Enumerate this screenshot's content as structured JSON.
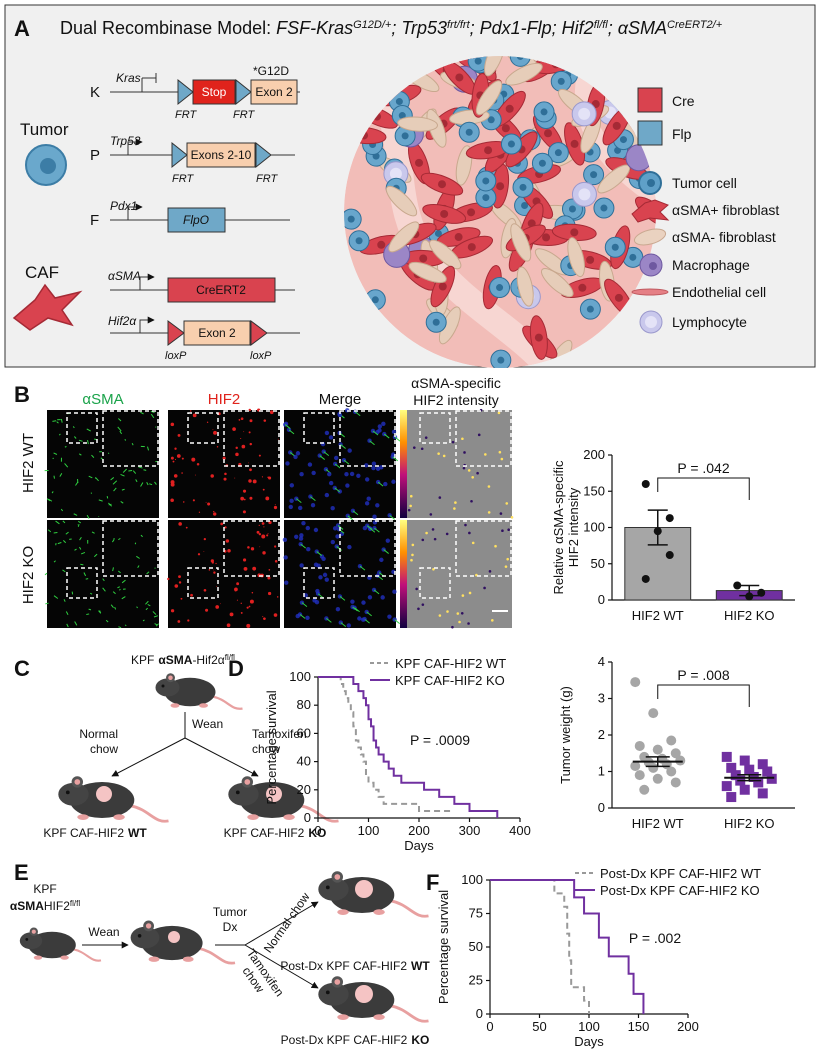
{
  "panel_a": {
    "letter": "A",
    "title_prefix": "Dual Recombinase Model:",
    "genotype": [
      {
        "text": "FSF-Kras",
        "sup": "G12D/+"
      },
      {
        "text": "; Trp53",
        "sup": "frt/frt"
      },
      {
        "text": "; Pdx1-Flp; Hif2",
        "sup": "fl/fl"
      },
      {
        "text": "; αSMA",
        "sup": "CreERT2/+"
      }
    ],
    "tumor": "Tumor",
    "caf": "CAF",
    "constructs": [
      {
        "letter": "K",
        "gene": "Kras",
        "boxes": [
          "Stop",
          "Exon 2"
        ],
        "mutation": "*G12D",
        "sites": [
          "FRT",
          "FRT"
        ]
      },
      {
        "letter": "P",
        "gene": "Trp53",
        "boxes": [
          "Exons 2-10"
        ],
        "sites": [
          "FRT",
          "FRT"
        ]
      },
      {
        "letter": "F",
        "gene": "Pdx1",
        "boxes": [
          "FlpO"
        ]
      },
      {
        "gene": "αSMA",
        "boxes": [
          "CreERT2"
        ]
      },
      {
        "gene": "Hif2α",
        "boxes": [
          "Exon 2"
        ],
        "sites": [
          "loxP",
          "loxP"
        ]
      }
    ],
    "legend": [
      "Cre",
      "Flp",
      "Tumor cell",
      "αSMA+ fibroblast",
      "αSMA- fibroblast",
      "Macrophage",
      "Endothelial cell",
      "Lymphocyte"
    ]
  },
  "panel_b": {
    "letter": "B",
    "columns": [
      "αSMA",
      "HIF2",
      "Merge"
    ],
    "column_4": [
      "αSMA-specific",
      "HIF2 intensity"
    ],
    "rows": [
      "HIF2 WT",
      "HIF2 KO"
    ]
  },
  "panel_c": {
    "letter": "C",
    "parent": {
      "pre": "KPF",
      "bold": "αSMA",
      "mid": "-Hif2α",
      "sup": "fl/fl"
    },
    "wean": "Wean",
    "left_arrow": [
      "Normal",
      "chow"
    ],
    "right_arrow": [
      "Tamoxifen",
      "chow"
    ],
    "groups": [
      {
        "text": "KPF CAF-HIF2",
        "bold": "WT"
      },
      {
        "text": "KPF CAF-HIF2",
        "bold": "KO"
      }
    ]
  },
  "panel_d": {
    "letter": "D"
  },
  "panel_e": {
    "letter": "E",
    "parent": {
      "line1": "KPF",
      "bold": "αSMA",
      "rest": "HIF2",
      "sup": "fl/fl"
    },
    "wean": "Wean",
    "dx": [
      "Tumor",
      "Dx"
    ],
    "upper_arrow": "Normal chow",
    "lower_arrow": [
      "Tamoxifen",
      "chow"
    ],
    "groups": [
      {
        "text": "Post-Dx KPF CAF-HIF2",
        "bold": "WT"
      },
      {
        "text": "Post-Dx KPF CAF-HIF2",
        "bold": "KO"
      }
    ]
  },
  "panel_f": {
    "letter": "F"
  },
  "chart_data": [
    {
      "type": "bar",
      "ylabel": [
        "Relative αSMA-specific",
        "HIF2 intensity"
      ],
      "categories": [
        "HIF2 WT",
        "HIF2 KO"
      ],
      "values": [
        100,
        13
      ],
      "errors": [
        24,
        7
      ],
      "points": [
        [
          160,
          113,
          95,
          62,
          29
        ],
        [
          20,
          10,
          5
        ]
      ],
      "colors": [
        "#a6a6a6",
        "#7030a0"
      ],
      "ylim": [
        0,
        200
      ],
      "yticks": [
        0,
        50,
        100,
        150,
        200
      ],
      "annotation": "P = .042"
    },
    {
      "type": "step",
      "ylabel": "Percentage survival",
      "xlabel": "Days",
      "xlim": [
        0,
        400
      ],
      "xticks": [
        0,
        100,
        200,
        300,
        400
      ],
      "ylim": [
        0,
        100
      ],
      "yticks": [
        0,
        20,
        40,
        60,
        80,
        100
      ],
      "annotation": "P = .0009",
      "series": [
        {
          "name": "KPF CAF-HIF2 WT",
          "color": "#999999",
          "dashed": true,
          "x": [
            0,
            45,
            50,
            55,
            60,
            65,
            70,
            75,
            80,
            85,
            90,
            95,
            100,
            110,
            120,
            130,
            200,
            265
          ],
          "values": [
            100,
            95,
            90,
            85,
            80,
            75,
            65,
            55,
            50,
            45,
            40,
            30,
            25,
            20,
            15,
            10,
            5,
            5
          ]
        },
        {
          "name": "KPF CAF-HIF2 KO",
          "color": "#7030a0",
          "dashed": false,
          "x": [
            0,
            70,
            80,
            90,
            95,
            100,
            105,
            110,
            115,
            120,
            130,
            140,
            150,
            165,
            210,
            240,
            270,
            300,
            355
          ],
          "values": [
            100,
            95,
            90,
            85,
            80,
            70,
            65,
            55,
            50,
            45,
            40,
            35,
            30,
            25,
            20,
            15,
            10,
            5,
            0
          ]
        }
      ]
    },
    {
      "type": "strip",
      "ylabel": "Tumor weight (g)",
      "categories": [
        "HIF2 WT",
        "HIF2 KO"
      ],
      "points": [
        [
          3.45,
          2.6,
          1.85,
          1.7,
          1.6,
          1.5,
          1.4,
          1.35,
          1.3,
          1.25,
          1.2,
          1.15,
          1.1,
          1.0,
          0.9,
          0.8,
          0.7,
          0.5
        ],
        [
          1.4,
          1.3,
          1.2,
          1.1,
          1.05,
          1.0,
          0.9,
          0.85,
          0.8,
          0.75,
          0.7,
          0.6,
          0.5,
          0.4,
          0.3
        ]
      ],
      "means": [
        1.27,
        0.83
      ],
      "errors": [
        0.13,
        0.08
      ],
      "colors": [
        "#a6a6a6",
        "#7030a0"
      ],
      "ylim": [
        0,
        4
      ],
      "yticks": [
        0,
        1,
        2,
        3,
        4
      ],
      "annotation": "P = .008"
    },
    {
      "type": "step",
      "ylabel": "Percentage survival",
      "xlabel": "Days",
      "xlim": [
        0,
        200
      ],
      "xticks": [
        0,
        50,
        100,
        150,
        200
      ],
      "ylim": [
        0,
        100
      ],
      "yticks": [
        0,
        25,
        50,
        75,
        100
      ],
      "annotation": "P = .002",
      "series": [
        {
          "name": "Post-Dx KPF CAF-HIF2 WT",
          "color": "#999999",
          "dashed": true,
          "x": [
            0,
            65,
            75,
            78,
            80,
            82,
            95,
            100
          ],
          "values": [
            100,
            90,
            80,
            60,
            40,
            20,
            10,
            0
          ]
        },
        {
          "name": "Post-Dx KPF CAF-HIF2 KO",
          "color": "#7030a0",
          "dashed": false,
          "x": [
            0,
            85,
            95,
            110,
            120,
            140,
            145,
            155
          ],
          "values": [
            100,
            87,
            75,
            57,
            43,
            30,
            15,
            0
          ]
        }
      ]
    }
  ]
}
